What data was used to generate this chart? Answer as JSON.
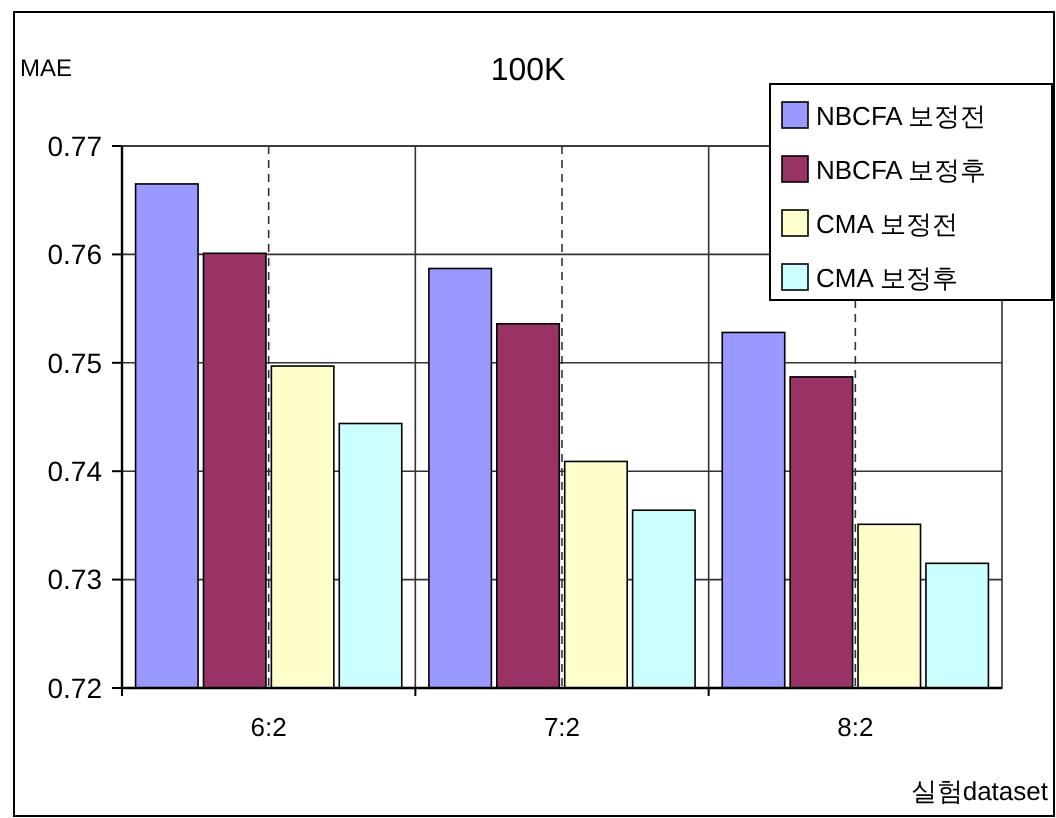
{
  "chart_data": {
    "type": "bar",
    "title": "100K",
    "ylabel": "MAE",
    "xlabel": "실험dataset",
    "categories": [
      "6:2",
      "7:2",
      "8:2"
    ],
    "series": [
      {
        "name": "NBCFA 보정전",
        "color": "#9999ff",
        "values": [
          0.7665,
          0.7587,
          0.7528
        ]
      },
      {
        "name": "NBCFA 보정후",
        "color": "#993366",
        "values": [
          0.7601,
          0.7536,
          0.7487
        ]
      },
      {
        "name": "CMA 보정전",
        "color": "#ffffcc",
        "values": [
          0.7497,
          0.7409,
          0.7351
        ]
      },
      {
        "name": "CMA 보정후",
        "color": "#ccffff",
        "values": [
          0.7444,
          0.7364,
          0.7315
        ]
      }
    ],
    "ylim": [
      0.72,
      0.77
    ],
    "yticks": [
      0.72,
      0.73,
      0.74,
      0.75,
      0.76,
      0.77
    ],
    "grid": true,
    "legend": "top right"
  }
}
